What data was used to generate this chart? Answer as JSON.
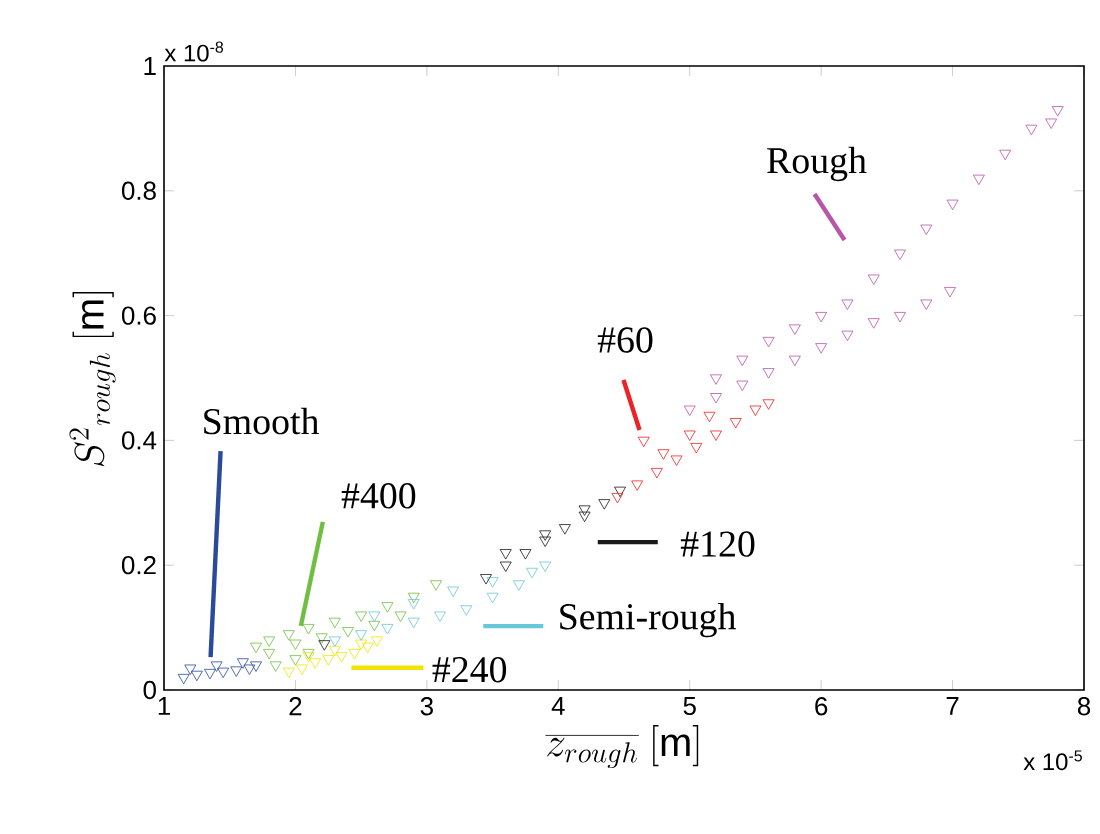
{
  "chart_data": {
    "type": "scatter",
    "xlabel": "\\overline{z_{rough}}\\ [\\mathrm{m}]",
    "ylabel": "S^{2}{}_{rough}\\ [\\mathrm{m}]",
    "xlim": [
      1,
      8
    ],
    "ylim": [
      0,
      1
    ],
    "xticks": [
      1,
      2,
      3,
      4,
      5,
      6,
      7,
      8
    ],
    "yticks": [
      0,
      0.2,
      0.4,
      0.6,
      0.8,
      1
    ],
    "grid": false,
    "marker": "triangle",
    "series": [
      {
        "color": "#2b4a9c",
        "x": [
          1.15,
          1.25,
          1.35,
          1.45,
          1.55,
          1.65,
          1.7,
          1.2,
          1.4,
          1.6
        ],
        "values": [
          0.02,
          0.025,
          0.028,
          0.03,
          0.032,
          0.035,
          0.04,
          0.035,
          0.04,
          0.045
        ]
      },
      {
        "color": "#6fbf40",
        "x": [
          1.7,
          1.8,
          1.95,
          2.1,
          2.3,
          2.5,
          2.7,
          2.9,
          3.07,
          1.8,
          2.0,
          2.2,
          2.4,
          2.6,
          2.8,
          1.85,
          2.0,
          2.1
        ],
        "values": [
          0.07,
          0.08,
          0.09,
          0.1,
          0.11,
          0.12,
          0.135,
          0.15,
          0.17,
          0.06,
          0.075,
          0.085,
          0.095,
          0.105,
          0.12,
          0.04,
          0.05,
          0.06
        ]
      },
      {
        "color": "#f2e400",
        "x": [
          1.95,
          2.05,
          2.15,
          2.25,
          2.35,
          2.45,
          2.55,
          2.62,
          2.1,
          2.3,
          2.5
        ],
        "values": [
          0.03,
          0.035,
          0.045,
          0.05,
          0.055,
          0.06,
          0.07,
          0.08,
          0.055,
          0.065,
          0.075
        ]
      },
      {
        "color": "#66c8d8",
        "x": [
          2.3,
          2.5,
          2.7,
          2.9,
          3.1,
          3.3,
          3.5,
          3.7,
          3.9,
          2.6,
          2.9,
          3.2,
          3.5,
          3.8
        ],
        "values": [
          0.08,
          0.09,
          0.1,
          0.11,
          0.12,
          0.13,
          0.15,
          0.17,
          0.2,
          0.12,
          0.14,
          0.16,
          0.175,
          0.19
        ]
      },
      {
        "color": "#1a1a1a",
        "x": [
          3.45,
          3.6,
          3.75,
          3.9,
          4.05,
          4.2,
          4.35,
          4.47,
          2.22,
          3.6,
          3.9,
          4.2
        ],
        "values": [
          0.18,
          0.2,
          0.22,
          0.24,
          0.26,
          0.28,
          0.3,
          0.32,
          0.074,
          0.22,
          0.25,
          0.29
        ]
      },
      {
        "color": "#ee2222",
        "x": [
          4.45,
          4.6,
          4.75,
          4.9,
          5.05,
          5.2,
          5.35,
          5.5,
          5.6,
          4.8,
          5.0,
          5.15,
          4.65
        ],
        "values": [
          0.31,
          0.33,
          0.35,
          0.37,
          0.39,
          0.41,
          0.43,
          0.45,
          0.46,
          0.38,
          0.41,
          0.44,
          0.4
        ]
      },
      {
        "color": "#b855a8",
        "x": [
          5.0,
          5.2,
          5.4,
          5.6,
          5.8,
          6.0,
          6.2,
          6.4,
          6.6,
          6.8,
          6.98,
          5.2,
          5.4,
          5.6,
          5.8,
          6.0,
          6.2,
          6.4,
          6.6,
          6.8,
          7.0,
          7.2,
          7.4,
          7.6,
          7.8,
          7.75
        ],
        "values": [
          0.45,
          0.47,
          0.49,
          0.51,
          0.53,
          0.55,
          0.57,
          0.59,
          0.6,
          0.62,
          0.64,
          0.5,
          0.53,
          0.56,
          0.58,
          0.6,
          0.62,
          0.66,
          0.7,
          0.74,
          0.78,
          0.82,
          0.86,
          0.9,
          0.93,
          0.91
        ]
      }
    ],
    "annotations": [
      {
        "text": "Smooth",
        "x": 1.4,
        "y": 0.04
      },
      {
        "text": "#400",
        "x": 1.95,
        "y": 0.09
      },
      {
        "text": "#240",
        "x": 2.35,
        "y": 0.055
      },
      {
        "text": "Semi-rough",
        "x": 3.3,
        "y": 0.13
      },
      {
        "text": "#120",
        "x": 4.2,
        "y": 0.28
      },
      {
        "text": "#60",
        "x": 4.65,
        "y": 0.4
      },
      {
        "text": "Rough",
        "x": 6.4,
        "y": 0.66
      },
      "x 10$^{-8}$",
      "x 10$^{-5}$"
    ]
  }
}
